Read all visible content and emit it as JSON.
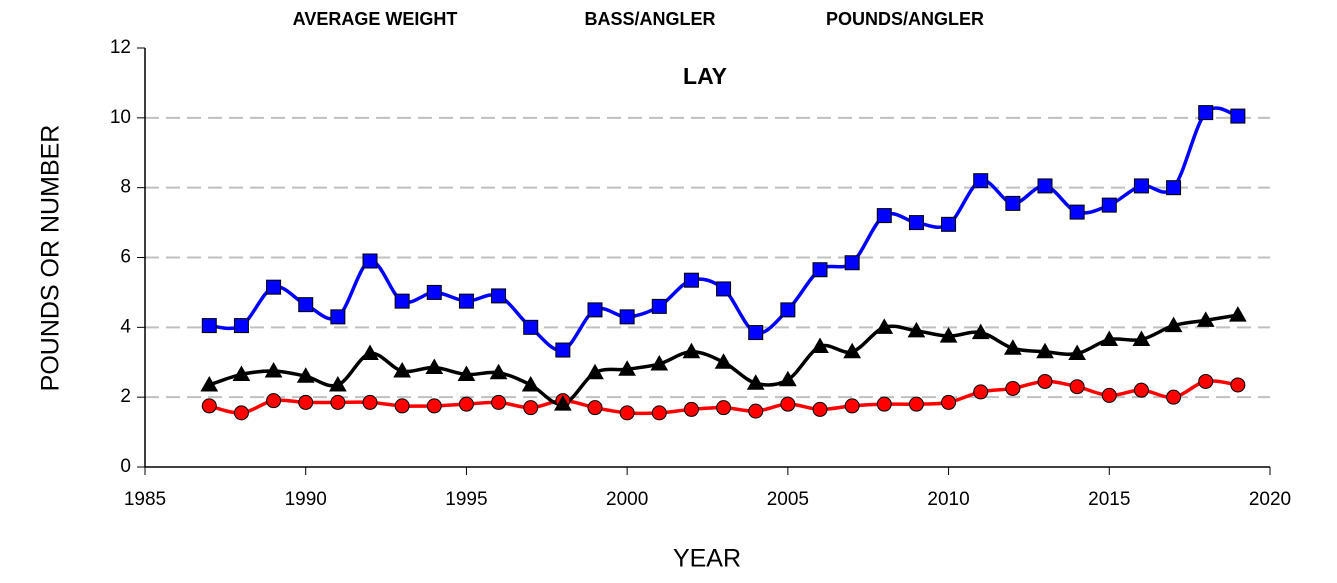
{
  "chart_data": {
    "type": "line",
    "title": "LAY",
    "xlabel": "YEAR",
    "ylabel": "POUNDS OR NUMBER",
    "x": [
      1987,
      1988,
      1989,
      1990,
      1991,
      1992,
      1993,
      1994,
      1995,
      1996,
      1997,
      1998,
      1999,
      2000,
      2001,
      2002,
      2003,
      2004,
      2005,
      2006,
      2007,
      2008,
      2009,
      2010,
      2011,
      2012,
      2013,
      2014,
      2015,
      2016,
      2017,
      2018,
      2019
    ],
    "series": [
      {
        "name": "AVERAGE WEIGHT",
        "color": "#ff0000",
        "marker": "circle",
        "values": [
          1.75,
          1.55,
          1.9,
          1.85,
          1.85,
          1.85,
          1.75,
          1.75,
          1.8,
          1.85,
          1.7,
          1.9,
          1.7,
          1.55,
          1.55,
          1.65,
          1.7,
          1.6,
          1.8,
          1.65,
          1.75,
          1.8,
          1.8,
          1.85,
          2.15,
          2.25,
          2.45,
          2.3,
          2.05,
          2.2,
          2.0,
          2.45,
          2.35
        ]
      },
      {
        "name": "BASS/ANGLER",
        "color": "#000000",
        "marker": "triangle",
        "values": [
          2.35,
          2.65,
          2.75,
          2.6,
          2.35,
          3.25,
          2.75,
          2.85,
          2.65,
          2.7,
          2.35,
          1.8,
          2.7,
          2.8,
          2.95,
          3.3,
          3.0,
          2.4,
          2.5,
          3.45,
          3.3,
          4.0,
          3.9,
          3.75,
          3.85,
          3.4,
          3.3,
          3.25,
          3.65,
          3.65,
          4.05,
          4.2,
          4.35
        ]
      },
      {
        "name": "POUNDS/ANGLER",
        "color": "#0000ff",
        "marker": "square",
        "values": [
          4.05,
          4.05,
          5.15,
          4.65,
          4.3,
          5.9,
          4.75,
          5.0,
          4.75,
          4.9,
          4.0,
          3.35,
          4.5,
          4.3,
          4.6,
          5.35,
          5.1,
          3.85,
          4.5,
          5.65,
          5.85,
          7.2,
          7.0,
          6.95,
          8.2,
          7.55,
          8.05,
          7.3,
          7.5,
          8.05,
          8.0,
          10.15,
          10.05
        ]
      }
    ],
    "xlim": [
      1985,
      2020
    ],
    "xticks": [
      1985,
      1990,
      1995,
      2000,
      2005,
      2010,
      2015,
      2020
    ],
    "ylim": [
      0,
      12
    ],
    "yticks": [
      0,
      2,
      4,
      6,
      8,
      10,
      12
    ],
    "grid": true
  }
}
